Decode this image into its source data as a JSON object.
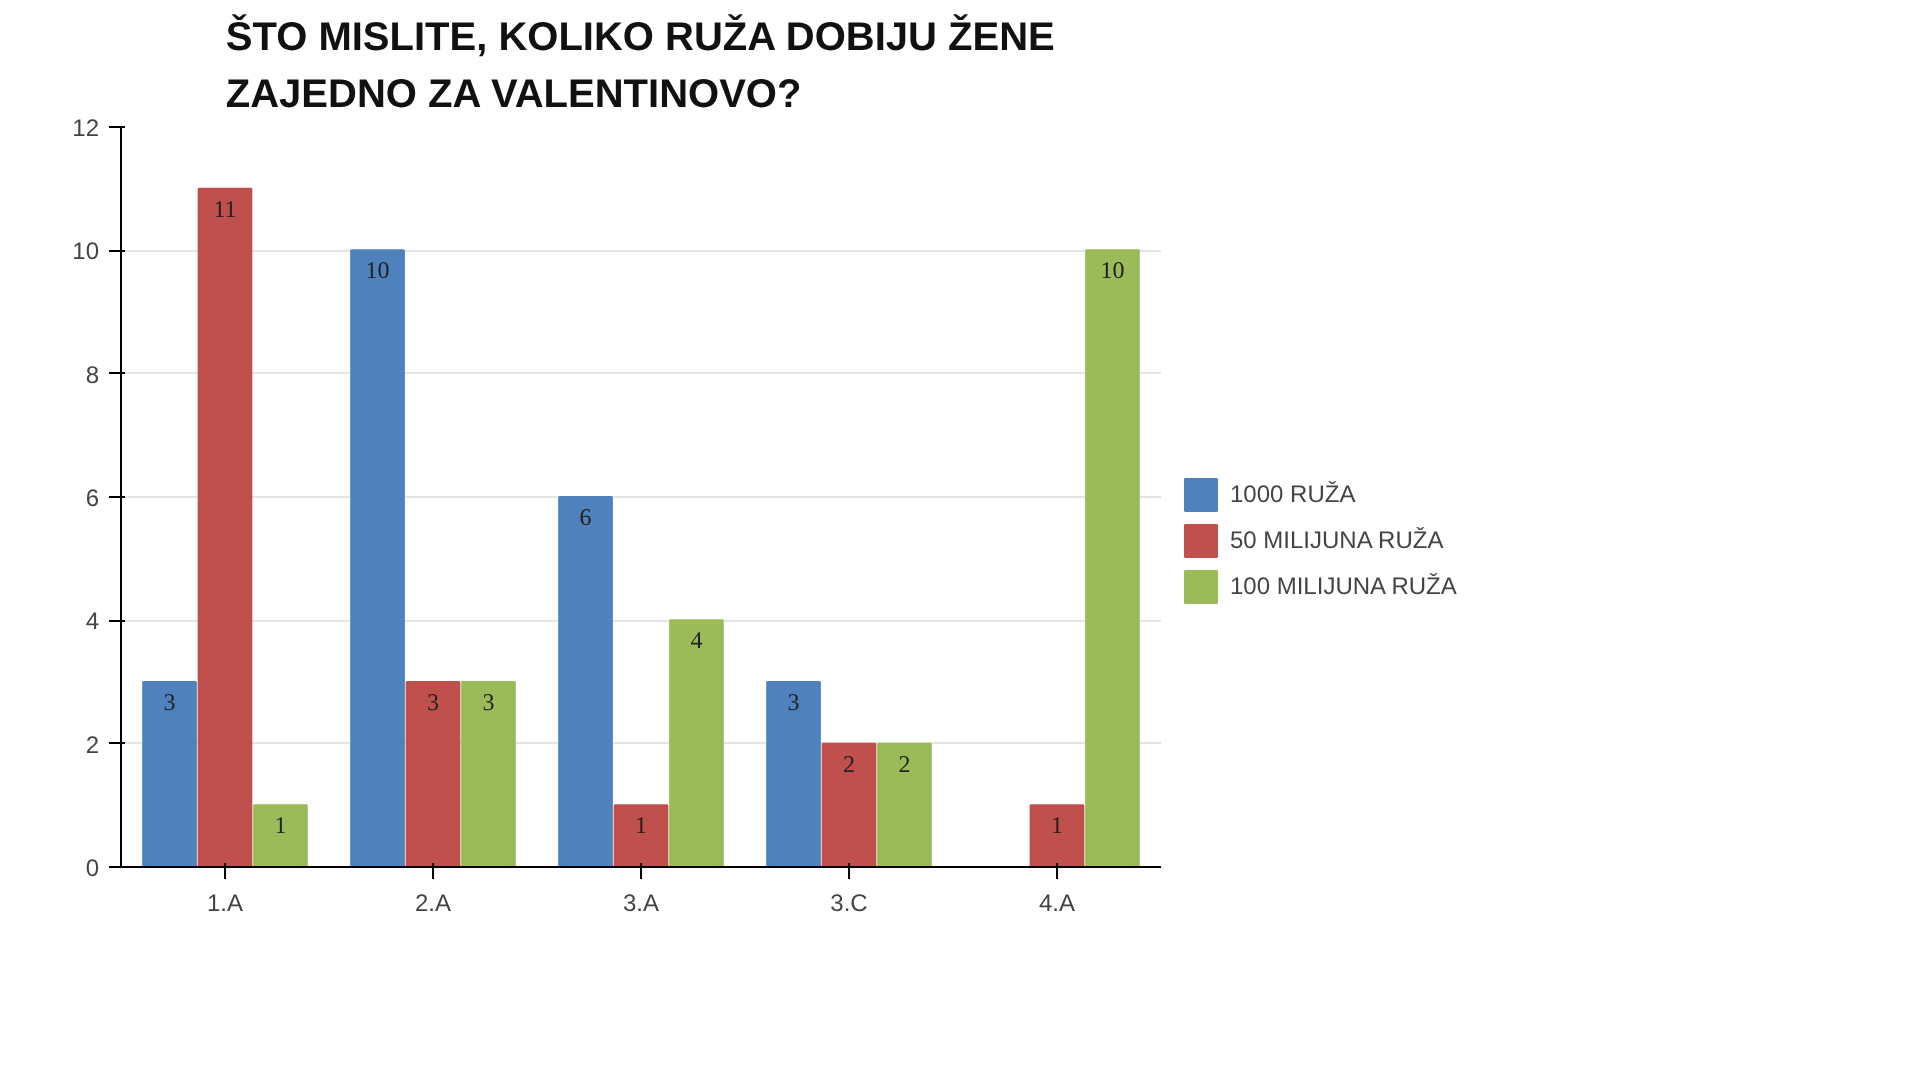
{
  "chart_data": {
    "type": "bar",
    "title": "ŠTO MISLITE, KOLIKO RUŽA DOBIJU ŽENE ZAJEDNO ZA VALENTINOVO?",
    "categories": [
      "1.A",
      "2.A",
      "3.A",
      "3.C",
      "4.A"
    ],
    "series": [
      {
        "name": "1000 RUŽA",
        "color": "#4f81bd",
        "values": [
          3,
          10,
          6,
          3,
          null
        ]
      },
      {
        "name": "50 MILIJUNA RUŽA",
        "color": "#c0504d",
        "values": [
          11,
          3,
          1,
          2,
          1
        ]
      },
      {
        "name": "100 MILIJUNA RUŽA",
        "color": "#9bbb59",
        "values": [
          1,
          3,
          4,
          2,
          10
        ]
      }
    ],
    "ylim": [
      0,
      12
    ],
    "yticks": [
      0,
      2,
      4,
      6,
      8,
      10,
      12
    ],
    "grid": "y",
    "legend": "right",
    "data_labels": true
  }
}
